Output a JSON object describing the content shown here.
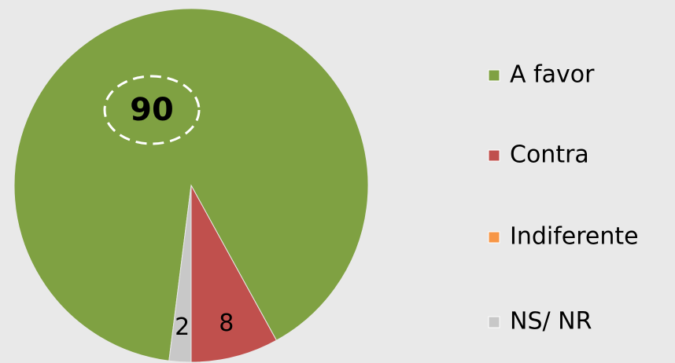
{
  "chart_data": {
    "type": "pie",
    "categories": [
      "A favor",
      "Contra",
      "Indiferente",
      "NS/ NR"
    ],
    "values": [
      90,
      8,
      0,
      2
    ],
    "colors": [
      "#7fa142",
      "#c0504d",
      "#f79646",
      "#c8c8c8"
    ],
    "legend": "right"
  }
}
